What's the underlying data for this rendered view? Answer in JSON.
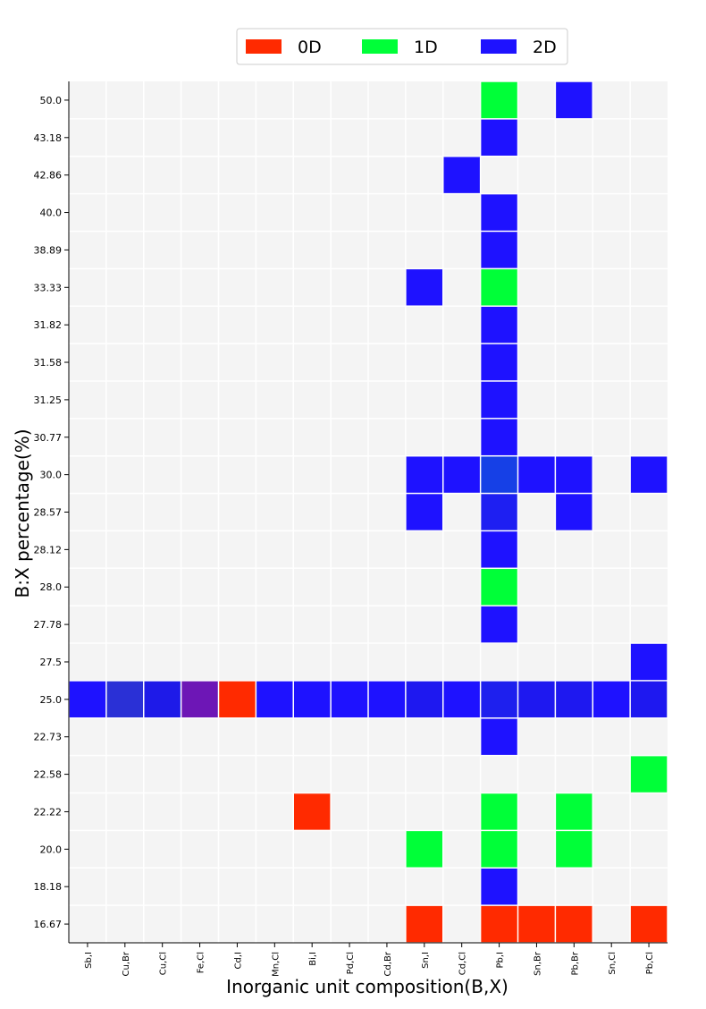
{
  "chart_data": {
    "type": "heatmap",
    "title": "",
    "xlabel": "Inorganic unit composition(B,X)",
    "ylabel": "B:X percentage(%)",
    "legend": {
      "placement": "top-center",
      "entries": [
        {
          "label": "0D",
          "color": "#ff2a00"
        },
        {
          "label": "1D",
          "color": "#00ff38"
        },
        {
          "label": "2D",
          "color": "#1e12ff"
        }
      ]
    },
    "background_color": "#f4f4f4",
    "x_categories": [
      "Sb,I",
      "Cu,Br",
      "Cu,Cl",
      "Fe,Cl",
      "Cd,I",
      "Mn,Cl",
      "Bi,I",
      "Pd,Cl",
      "Cd,Br",
      "Sn,I",
      "Cd,Cl",
      "Pb,I",
      "Sn,Br",
      "Pb,Br",
      "Sn,Cl",
      "Pb,Cl"
    ],
    "y_categories": [
      "50.0",
      "43.18",
      "42.86",
      "40.0",
      "38.89",
      "33.33",
      "31.82",
      "31.58",
      "31.25",
      "30.77",
      "30.0",
      "28.57",
      "28.12",
      "28.0",
      "27.78",
      "27.5",
      "25.0",
      "22.73",
      "22.58",
      "22.22",
      "20.0",
      "18.18",
      "16.67"
    ],
    "cells": [
      {
        "x": "Pb,I",
        "y": "50.0",
        "color": "#00ff38"
      },
      {
        "x": "Pb,Br",
        "y": "50.0",
        "color": "#1e12ff"
      },
      {
        "x": "Pb,I",
        "y": "43.18",
        "color": "#1e12ff"
      },
      {
        "x": "Cd,Cl",
        "y": "42.86",
        "color": "#1e12ff"
      },
      {
        "x": "Pb,I",
        "y": "40.0",
        "color": "#1e12ff"
      },
      {
        "x": "Pb,I",
        "y": "38.89",
        "color": "#1e12ff"
      },
      {
        "x": "Sn,I",
        "y": "33.33",
        "color": "#1e12ff"
      },
      {
        "x": "Pb,I",
        "y": "33.33",
        "color": "#00ff38"
      },
      {
        "x": "Pb,I",
        "y": "31.82",
        "color": "#1e12ff"
      },
      {
        "x": "Pb,I",
        "y": "31.58",
        "color": "#1e12ff"
      },
      {
        "x": "Pb,I",
        "y": "31.25",
        "color": "#1e12ff"
      },
      {
        "x": "Pb,I",
        "y": "30.77",
        "color": "#1e12ff"
      },
      {
        "x": "Sn,I",
        "y": "30.0",
        "color": "#1e12ff"
      },
      {
        "x": "Cd,Cl",
        "y": "30.0",
        "color": "#1e12ff"
      },
      {
        "x": "Pb,I",
        "y": "30.0",
        "color": "#1640e6"
      },
      {
        "x": "Sn,Br",
        "y": "30.0",
        "color": "#1e12ff"
      },
      {
        "x": "Pb,Br",
        "y": "30.0",
        "color": "#1e12ff"
      },
      {
        "x": "Pb,Cl",
        "y": "30.0",
        "color": "#1e12ff"
      },
      {
        "x": "Sn,I",
        "y": "28.57",
        "color": "#1e12ff"
      },
      {
        "x": "Pb,I",
        "y": "28.57",
        "color": "#1e1ff2"
      },
      {
        "x": "Pb,Br",
        "y": "28.57",
        "color": "#1e12ff"
      },
      {
        "x": "Pb,I",
        "y": "28.12",
        "color": "#1e12ff"
      },
      {
        "x": "Pb,I",
        "y": "28.0",
        "color": "#00ff38"
      },
      {
        "x": "Pb,I",
        "y": "27.78",
        "color": "#1e12ff"
      },
      {
        "x": "Pb,Cl",
        "y": "27.5",
        "color": "#1e12ff"
      },
      {
        "x": "Sb,I",
        "y": "25.0",
        "color": "#1e12ff"
      },
      {
        "x": "Cu,Br",
        "y": "25.0",
        "color": "#2a30d6"
      },
      {
        "x": "Cu,Cl",
        "y": "25.0",
        "color": "#1e1ae8"
      },
      {
        "x": "Fe,Cl",
        "y": "25.0",
        "color": "#6d16b6"
      },
      {
        "x": "Cd,I",
        "y": "25.0",
        "color": "#ff2a00"
      },
      {
        "x": "Mn,Cl",
        "y": "25.0",
        "color": "#1e12ff"
      },
      {
        "x": "Bi,I",
        "y": "25.0",
        "color": "#1e12ff"
      },
      {
        "x": "Pd,Cl",
        "y": "25.0",
        "color": "#1e12ff"
      },
      {
        "x": "Cd,Br",
        "y": "25.0",
        "color": "#1e12ff"
      },
      {
        "x": "Sn,I",
        "y": "25.0",
        "color": "#1e18f0"
      },
      {
        "x": "Cd,Cl",
        "y": "25.0",
        "color": "#1e12ff"
      },
      {
        "x": "Pb,I",
        "y": "25.0",
        "color": "#1e20ee"
      },
      {
        "x": "Sn,Br",
        "y": "25.0",
        "color": "#1e18f0"
      },
      {
        "x": "Pb,Br",
        "y": "25.0",
        "color": "#1e18f0"
      },
      {
        "x": "Sn,Cl",
        "y": "25.0",
        "color": "#1e12ff"
      },
      {
        "x": "Pb,Cl",
        "y": "25.0",
        "color": "#1e18f0"
      },
      {
        "x": "Pb,I",
        "y": "22.73",
        "color": "#1e12ff"
      },
      {
        "x": "Pb,Cl",
        "y": "22.58",
        "color": "#00ff38"
      },
      {
        "x": "Bi,I",
        "y": "22.22",
        "color": "#ff2a00"
      },
      {
        "x": "Pb,I",
        "y": "22.22",
        "color": "#00ff38"
      },
      {
        "x": "Pb,Br",
        "y": "22.22",
        "color": "#00ff38"
      },
      {
        "x": "Sn,I",
        "y": "20.0",
        "color": "#00ff38"
      },
      {
        "x": "Pb,I",
        "y": "20.0",
        "color": "#00ff38"
      },
      {
        "x": "Pb,Br",
        "y": "20.0",
        "color": "#00ff38"
      },
      {
        "x": "Pb,I",
        "y": "18.18",
        "color": "#1e12ff"
      },
      {
        "x": "Sn,I",
        "y": "16.67",
        "color": "#ff2a00"
      },
      {
        "x": "Pb,I",
        "y": "16.67",
        "color": "#ff2a00"
      },
      {
        "x": "Sn,Br",
        "y": "16.67",
        "color": "#ff2a00"
      },
      {
        "x": "Pb,Br",
        "y": "16.67",
        "color": "#ff2a00"
      },
      {
        "x": "Pb,Cl",
        "y": "16.67",
        "color": "#ff2a00"
      }
    ]
  }
}
